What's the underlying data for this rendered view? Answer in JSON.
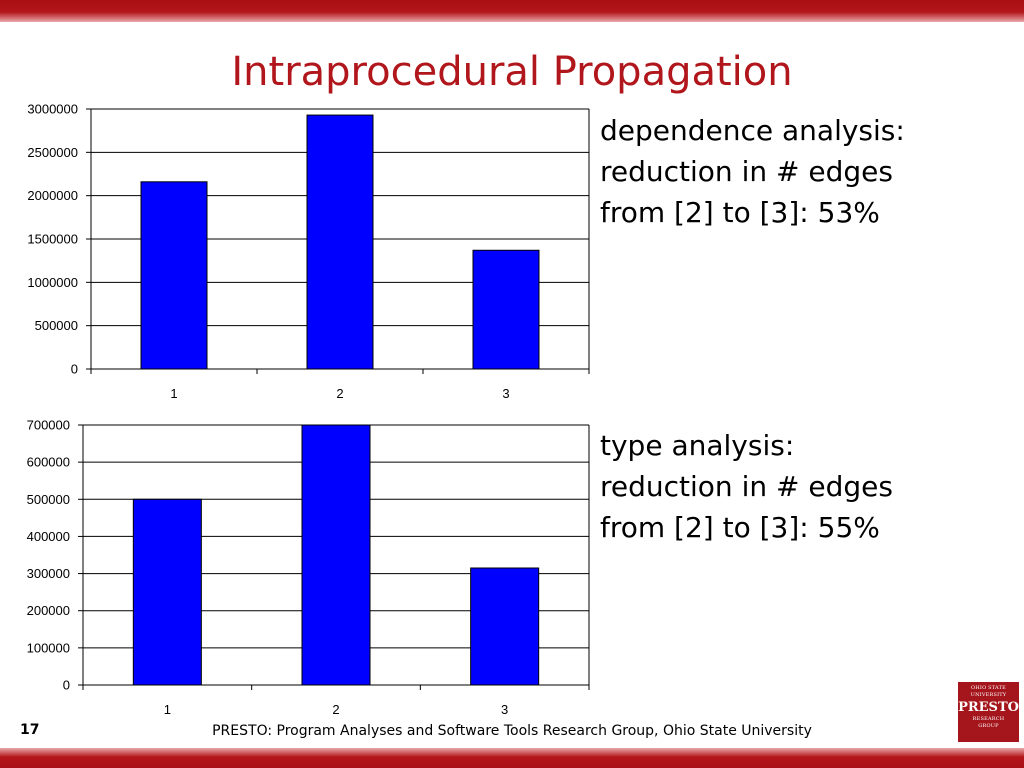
{
  "slide": {
    "title": "Intraprocedural Propagation",
    "page_number": "17",
    "footer": "PRESTO: Program Analyses and Software Tools Research Group, Ohio State University",
    "logo": {
      "line1": "OHIO STATE",
      "line2": "UNIVERSITY",
      "name": "PRESTO",
      "line3": "RESEARCH",
      "line4": "GROUP"
    },
    "notes": [
      {
        "lines": [
          "dependence analysis:",
          "reduction in # edges",
          "from [2] to [3]: 53%"
        ]
      },
      {
        "lines": [
          "type analysis:",
          "reduction in # edges",
          "from [2] to [3]: 55%"
        ]
      }
    ],
    "colors": {
      "accent": "#b0161b",
      "bar": "#0000ff"
    }
  },
  "chart_data": [
    {
      "type": "bar",
      "categories": [
        "1",
        "2",
        "3"
      ],
      "values": [
        2160000,
        2930000,
        1370000
      ],
      "ylim": [
        0,
        3000000
      ],
      "yticks": [
        "0",
        "500000",
        "1000000",
        "1500000",
        "2000000",
        "2500000",
        "3000000"
      ],
      "grid": true,
      "legend": "none"
    },
    {
      "type": "bar",
      "categories": [
        "1",
        "2",
        "3"
      ],
      "values": [
        500000,
        700000,
        315000
      ],
      "ylim": [
        0,
        700000
      ],
      "yticks": [
        "0",
        "100000",
        "200000",
        "300000",
        "400000",
        "500000",
        "600000",
        "700000"
      ],
      "grid": true,
      "legend": "none"
    }
  ]
}
